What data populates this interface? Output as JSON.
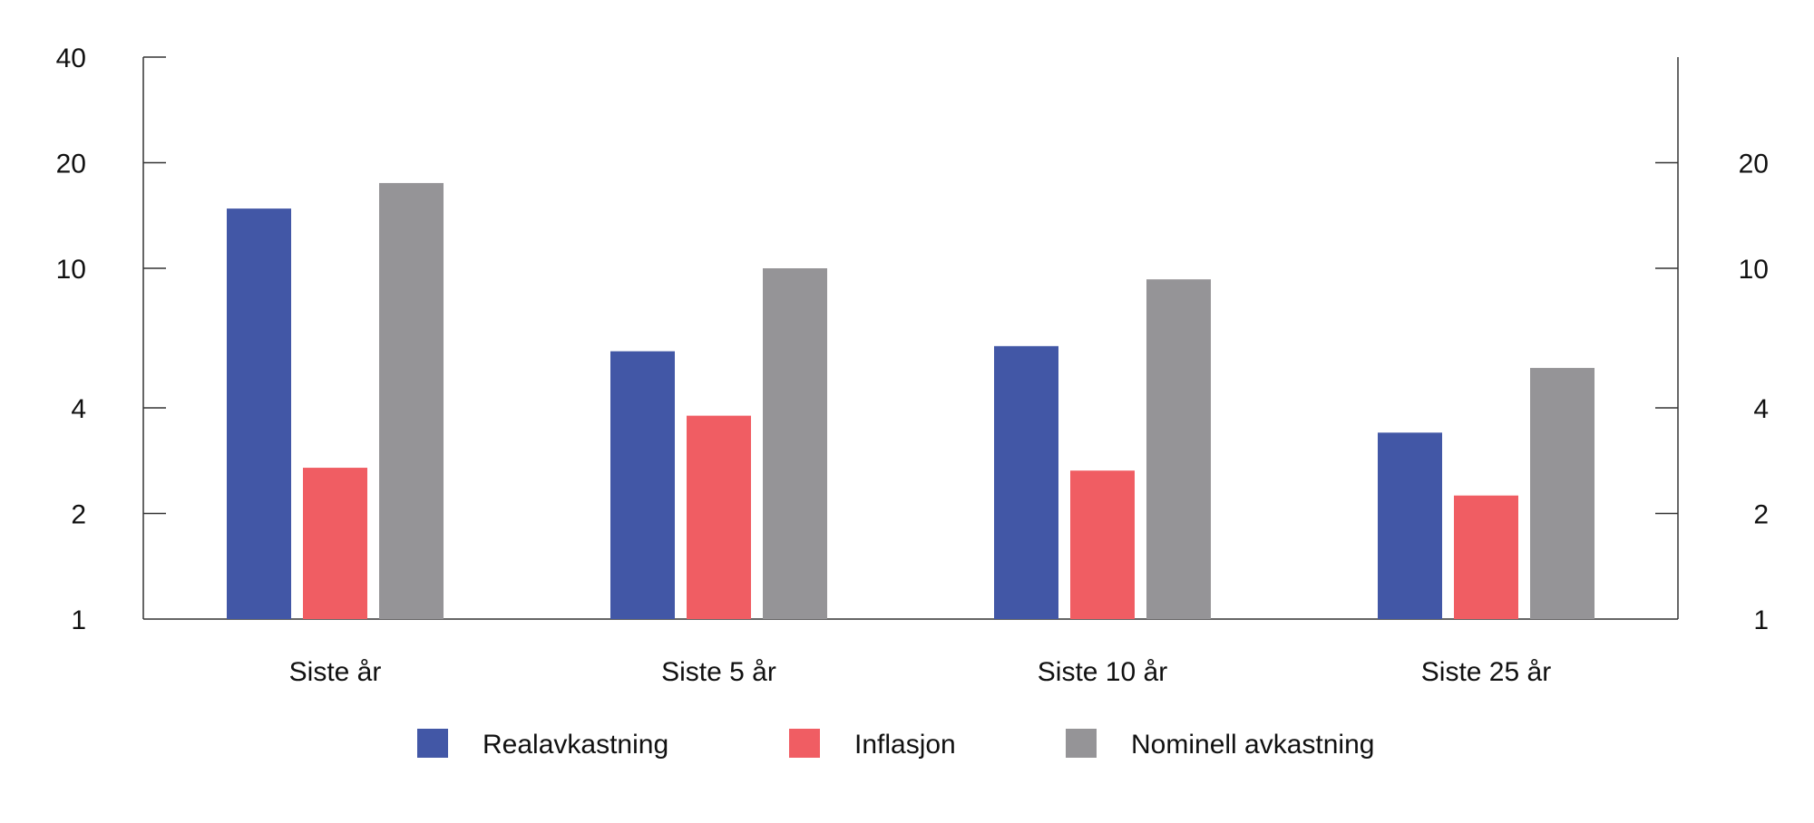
{
  "chart_data": {
    "type": "bar",
    "categories": [
      "Siste år",
      "Siste 5 år",
      "Siste 10 år",
      "Siste 25 år"
    ],
    "series": [
      {
        "name": "Realavkastning",
        "color": "#4257a6",
        "values": [
          14.8,
          5.8,
          6.0,
          3.4
        ]
      },
      {
        "name": "Inflasjon",
        "color": "#f05d63",
        "values": [
          2.7,
          3.8,
          2.65,
          2.25
        ]
      },
      {
        "name": "Nominell avkastning",
        "color": "#959497",
        "values": [
          17.5,
          10.0,
          9.3,
          5.2
        ]
      }
    ],
    "y_scale": "log",
    "ylim": [
      1,
      40
    ],
    "left_ticks": [
      1,
      2,
      4,
      10,
      20,
      40
    ],
    "right_ticks": [
      1,
      2,
      4,
      10,
      20
    ],
    "title": "",
    "xlabel": "",
    "ylabel": "",
    "grid": false,
    "legend_position": "bottom"
  }
}
